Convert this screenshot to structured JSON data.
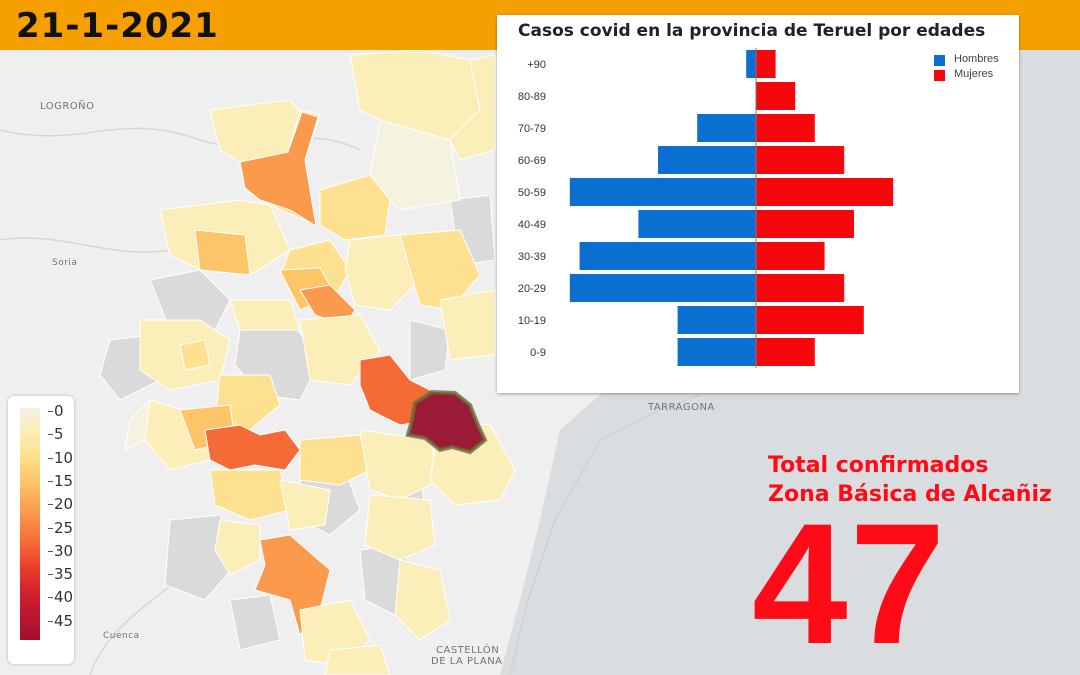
{
  "header": {
    "date": "21-1-2021"
  },
  "map": {
    "labels": {
      "logrono": "LOGROÑO",
      "soria": "Soria",
      "tarragona": "TARRAGONA",
      "cuenca": "Cuenca",
      "castellon_1": "CASTELLÓN",
      "castellon_2": "DE LA PLANA"
    },
    "colors": {
      "sea": "#d9dde0",
      "land": "#f2f2f2",
      "no_data": "#dadada",
      "highlight": "#9b1a35"
    }
  },
  "color_scale": {
    "ticks": [
      "0",
      "5",
      "10",
      "15",
      "20",
      "25",
      "30",
      "35",
      "40",
      "45"
    ],
    "colors": [
      "#f4f1e6",
      "#fbeeb8",
      "#fde190",
      "#fdc468",
      "#f99a4c",
      "#f56b38",
      "#e8392b",
      "#cc1d2d",
      "#a30f33"
    ]
  },
  "chart_data": {
    "type": "bar",
    "title": "Casos covid en la provincia de Teruel por edades",
    "categories": [
      "+90",
      "80-89",
      "70-79",
      "60-69",
      "50-59",
      "40-49",
      "30-39",
      "20-29",
      "10-19",
      "0-9"
    ],
    "series": [
      {
        "name": "Hombres",
        "color": "#0a6fd1",
        "values": [
          1,
          0,
          6,
          10,
          19,
          12,
          18,
          19,
          8,
          8
        ]
      },
      {
        "name": "Mujeres",
        "color": "#f5070b",
        "values": [
          2,
          4,
          6,
          9,
          14,
          10,
          7,
          9,
          11,
          6
        ]
      }
    ],
    "orientation": "horizontal",
    "legend": "top-right",
    "grid": false
  },
  "total": {
    "line1": "Total confirmados",
    "line2": "Zona Básica de Alcañiz",
    "value": "47"
  }
}
